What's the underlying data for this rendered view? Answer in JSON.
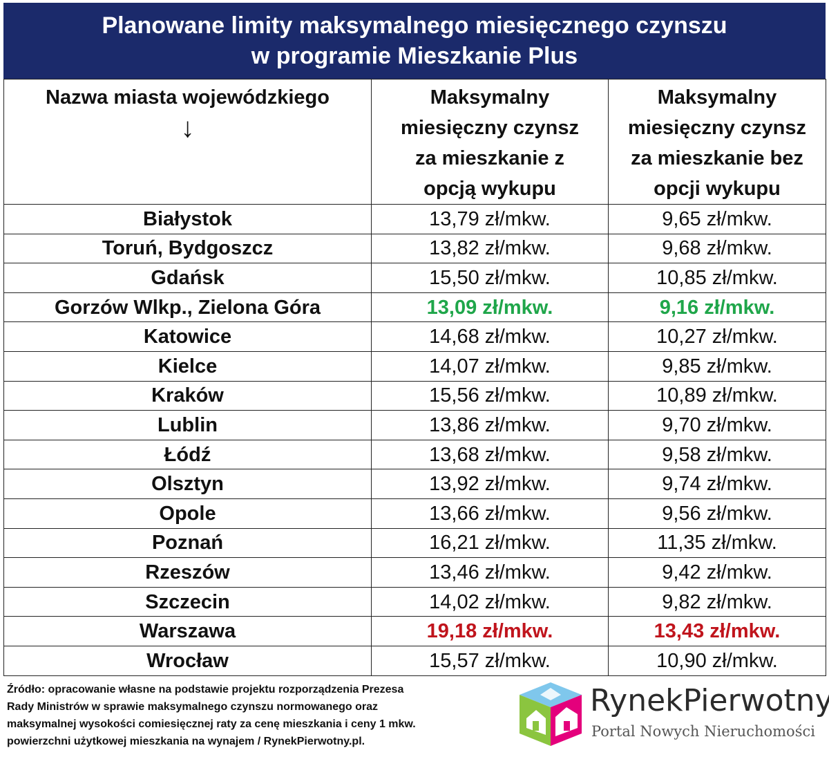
{
  "title": {
    "line1": "Planowane limity maksymalnego miesięcznego czynszu",
    "line2": "w programie Mieszkanie Plus"
  },
  "table": {
    "headers": {
      "city": "Nazwa miasta wojewódzkiego",
      "city_arrow": "↓",
      "with_buyout": [
        "Maksymalny",
        "miesięczny czynsz",
        "za mieszkanie z",
        "opcją wykupu"
      ],
      "without_buyout": [
        "Maksymalny",
        "miesięczny czynsz",
        "za mieszkanie bez",
        "opcji wykupu"
      ]
    },
    "rows": [
      {
        "city": "Białystok",
        "with_buyout": "13,79 zł/mkw.",
        "without_buyout": "9,65 zł/mkw."
      },
      {
        "city": "Toruń, Bydgoszcz",
        "with_buyout": "13,82 zł/mkw.",
        "without_buyout": "9,68 zł/mkw."
      },
      {
        "city": "Gdańsk",
        "with_buyout": "15,50 zł/mkw.",
        "without_buyout": "10,85 zł/mkw."
      },
      {
        "city": "Gorzów Wlkp., Zielona Góra",
        "with_buyout": "13,09 zł/mkw.",
        "without_buyout": "9,16 zł/mkw."
      },
      {
        "city": "Katowice",
        "with_buyout": "14,68 zł/mkw.",
        "without_buyout": "10,27 zł/mkw."
      },
      {
        "city": "Kielce",
        "with_buyout": "14,07 zł/mkw.",
        "without_buyout": "9,85 zł/mkw."
      },
      {
        "city": "Kraków",
        "with_buyout": "15,56 zł/mkw.",
        "without_buyout": "10,89 zł/mkw."
      },
      {
        "city": "Lublin",
        "with_buyout": "13,86 zł/mkw.",
        "without_buyout": "9,70 zł/mkw."
      },
      {
        "city": "Łódź",
        "with_buyout": "13,68 zł/mkw.",
        "without_buyout": "9,58 zł/mkw."
      },
      {
        "city": "Olsztyn",
        "with_buyout": "13,92 zł/mkw.",
        "without_buyout": "9,74 zł/mkw."
      },
      {
        "city": "Opole",
        "with_buyout": "13,66 zł/mkw.",
        "without_buyout": "9,56 zł/mkw."
      },
      {
        "city": "Poznań",
        "with_buyout": "16,21 zł/mkw.",
        "without_buyout": "11,35 zł/mkw."
      },
      {
        "city": "Rzeszów",
        "with_buyout": "13,46 zł/mkw.",
        "without_buyout": "9,42 zł/mkw."
      },
      {
        "city": "Szczecin",
        "with_buyout": "14,02 zł/mkw.",
        "without_buyout": "9,82 zł/mkw."
      },
      {
        "city": "Warszawa",
        "with_buyout": "19,18 zł/mkw.",
        "without_buyout": "13,43 zł/mkw."
      },
      {
        "city": "Wrocław",
        "with_buyout": "15,57 zł/mkw.",
        "without_buyout": "10,90 zł/mkw."
      }
    ]
  },
  "highlight_colors": {
    "lowest": "#1fa64a",
    "highest": "#c0141c",
    "title_bg": "#1b2a6b"
  },
  "source": {
    "lines": [
      "Źródło: opracowanie własne na podstawie projektu rozporządzenia Prezesa",
      "Rady Ministrów w sprawie maksymalnego czynszu normowanego oraz",
      "maksymalnej wysokości comiesięcznej raty za cenę mieszkania i ceny 1 mkw.",
      "powierzchni użytkowej mieszkania na wynajem / RynekPierwotny.pl."
    ]
  },
  "logo": {
    "icon": "house-cube-logo-icon",
    "name": "RynekPierwotny",
    "tagline": "Portal Nowych Nieruchomości"
  }
}
